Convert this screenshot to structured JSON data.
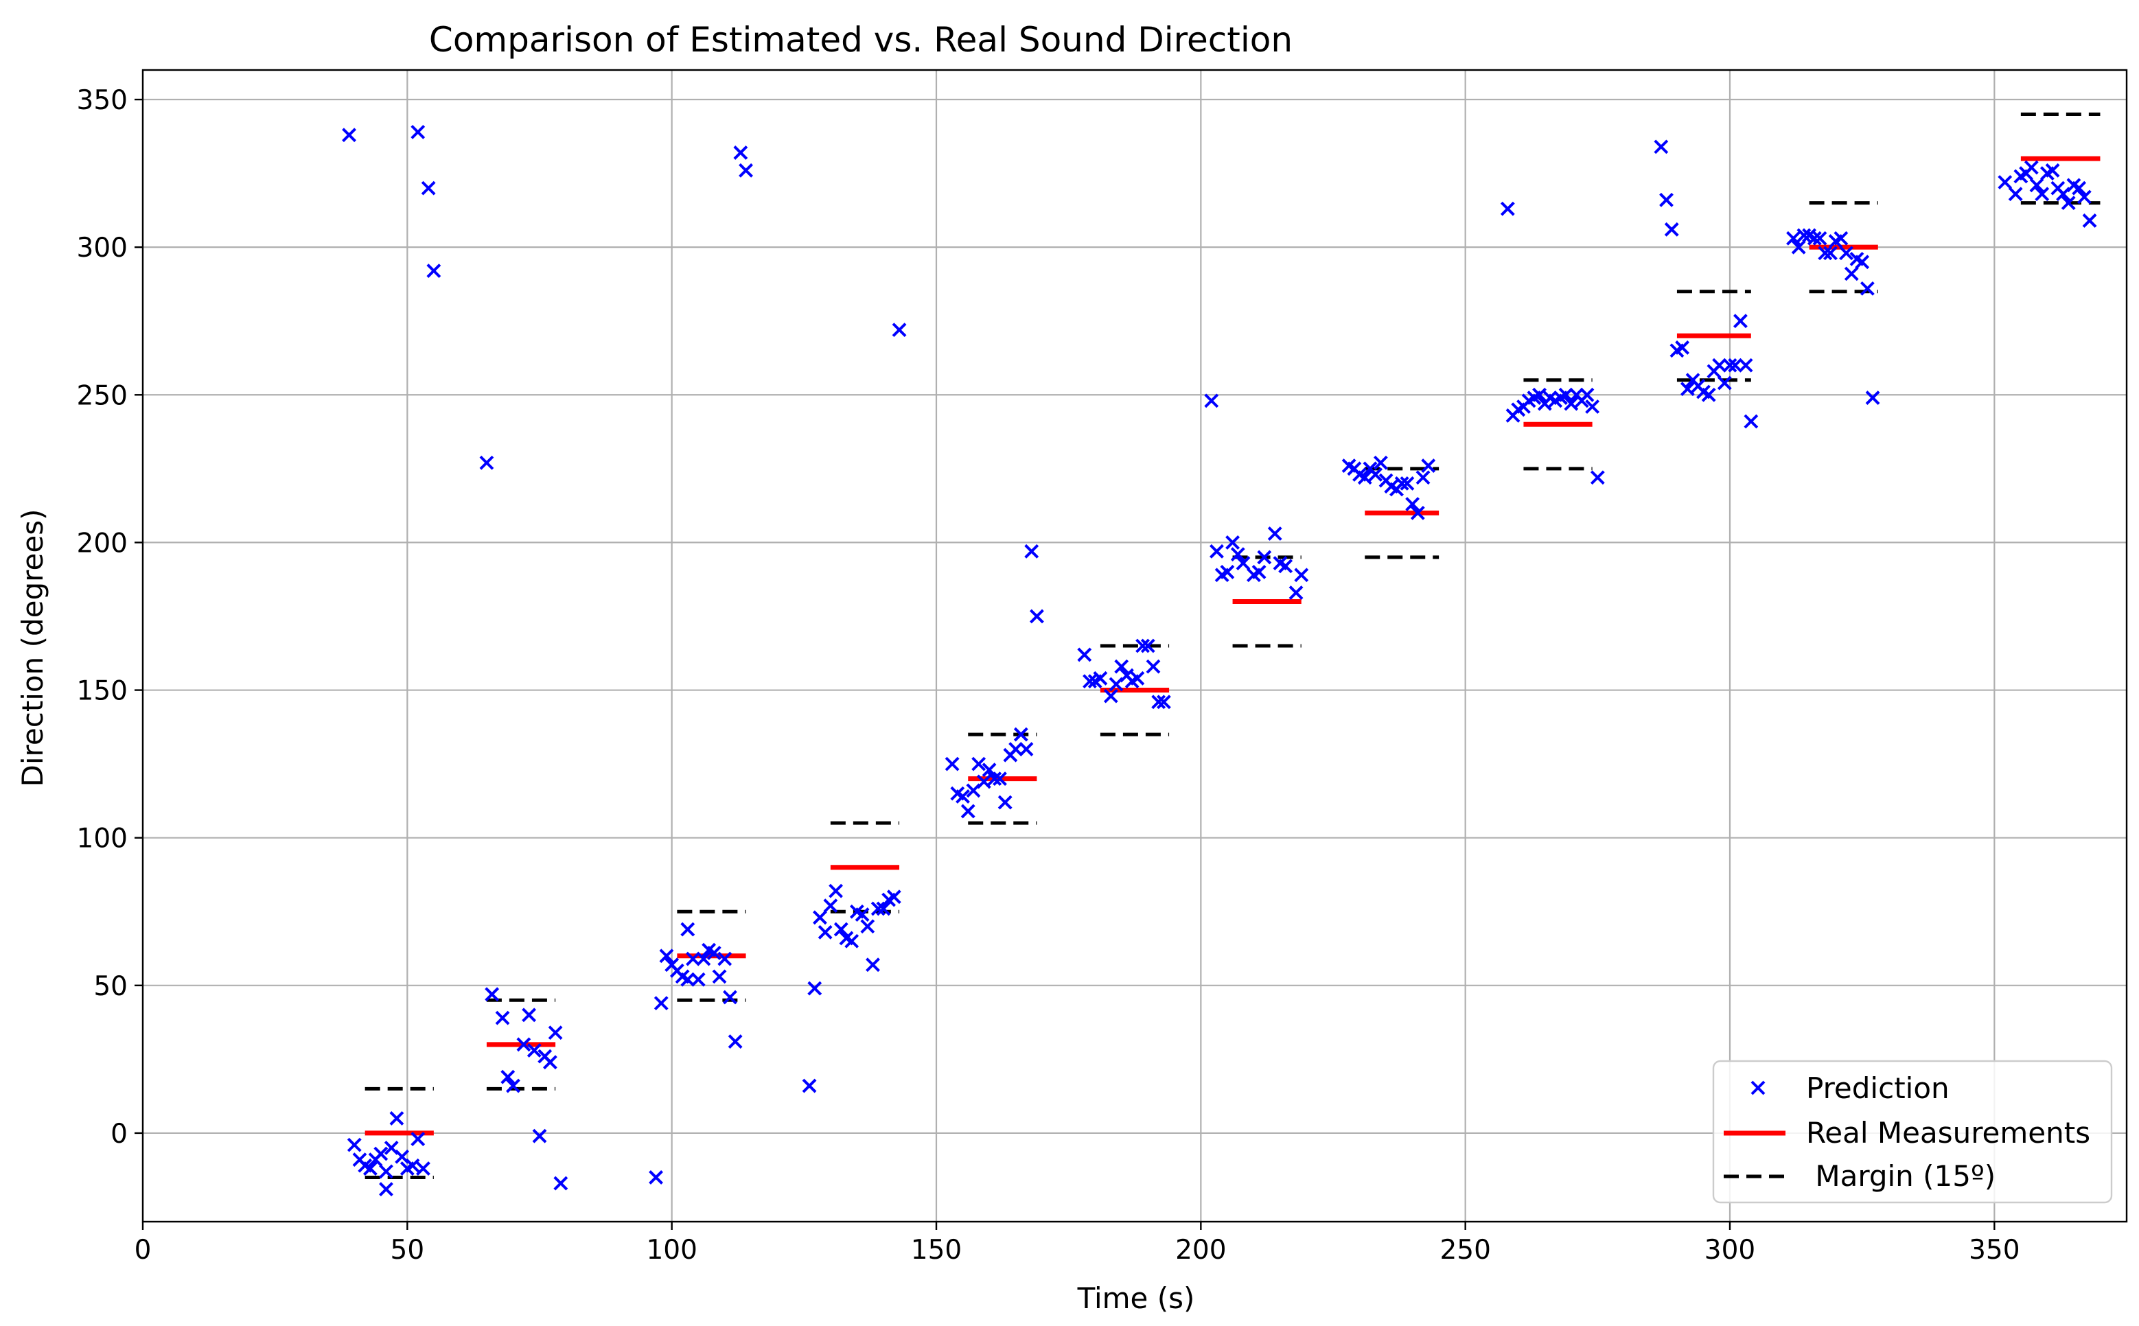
{
  "chart_data": {
    "type": "scatter",
    "title": "Comparison of Estimated vs. Real Sound Direction",
    "xlabel": "Time (s)",
    "ylabel": "Direction (degrees)",
    "xlim": [
      0,
      375
    ],
    "ylim": [
      -30,
      360
    ],
    "xticks": [
      0,
      50,
      100,
      150,
      200,
      250,
      300,
      350
    ],
    "yticks": [
      0,
      50,
      100,
      150,
      200,
      250,
      300,
      350
    ],
    "grid": true,
    "legend_position": "bottom-right",
    "colors": {
      "prediction": "#0000ff",
      "real": "#ff0000",
      "margin": "#000000"
    },
    "legend": [
      {
        "label": "Prediction",
        "style": "marker-x",
        "color": "#0000ff"
      },
      {
        "label": "Real Measurements",
        "style": "line",
        "color": "#ff0000"
      },
      {
        "label": " Margin (15º)",
        "style": "dashed",
        "color": "#000000"
      }
    ],
    "series": [
      {
        "name": "Prediction",
        "kind": "scatter",
        "points": [
          [
            39,
            338
          ],
          [
            40,
            -4
          ],
          [
            41,
            -9
          ],
          [
            42,
            -11
          ],
          [
            43,
            -12
          ],
          [
            44,
            -9
          ],
          [
            45,
            -7
          ],
          [
            46,
            -13
          ],
          [
            46,
            -19
          ],
          [
            47,
            -5
          ],
          [
            48,
            5
          ],
          [
            49,
            -8
          ],
          [
            50,
            -12
          ],
          [
            51,
            -11
          ],
          [
            52,
            -2
          ],
          [
            52,
            339
          ],
          [
            53,
            -12
          ],
          [
            54,
            320
          ],
          [
            55,
            292
          ],
          [
            65,
            227
          ],
          [
            66,
            47
          ],
          [
            68,
            39
          ],
          [
            69,
            19
          ],
          [
            70,
            16
          ],
          [
            72,
            30
          ],
          [
            73,
            40
          ],
          [
            74,
            28
          ],
          [
            75,
            -1
          ],
          [
            76,
            26
          ],
          [
            77,
            24
          ],
          [
            78,
            34
          ],
          [
            79,
            -17
          ],
          [
            97,
            -15
          ],
          [
            98,
            44
          ],
          [
            99,
            60
          ],
          [
            100,
            57
          ],
          [
            101,
            55
          ],
          [
            102,
            53
          ],
          [
            103,
            52
          ],
          [
            103,
            69
          ],
          [
            104,
            59
          ],
          [
            105,
            52
          ],
          [
            106,
            59
          ],
          [
            107,
            62
          ],
          [
            108,
            61
          ],
          [
            109,
            53
          ],
          [
            110,
            59
          ],
          [
            111,
            46
          ],
          [
            112,
            31
          ],
          [
            113,
            332
          ],
          [
            114,
            326
          ],
          [
            126,
            16
          ],
          [
            127,
            49
          ],
          [
            128,
            73
          ],
          [
            129,
            68
          ],
          [
            130,
            77
          ],
          [
            131,
            82
          ],
          [
            132,
            69
          ],
          [
            133,
            66
          ],
          [
            134,
            65
          ],
          [
            135,
            75
          ],
          [
            136,
            74
          ],
          [
            137,
            70
          ],
          [
            138,
            57
          ],
          [
            139,
            76
          ],
          [
            140,
            76
          ],
          [
            141,
            79
          ],
          [
            142,
            80
          ],
          [
            143,
            272
          ],
          [
            153,
            125
          ],
          [
            154,
            115
          ],
          [
            155,
            114
          ],
          [
            156,
            109
          ],
          [
            157,
            116
          ],
          [
            158,
            125
          ],
          [
            159,
            119
          ],
          [
            160,
            123
          ],
          [
            161,
            120
          ],
          [
            162,
            120
          ],
          [
            163,
            112
          ],
          [
            164,
            128
          ],
          [
            165,
            130
          ],
          [
            166,
            135
          ],
          [
            167,
            130
          ],
          [
            168,
            197
          ],
          [
            169,
            175
          ],
          [
            178,
            162
          ],
          [
            179,
            153
          ],
          [
            180,
            153
          ],
          [
            181,
            154
          ],
          [
            183,
            148
          ],
          [
            184,
            152
          ],
          [
            185,
            158
          ],
          [
            186,
            155
          ],
          [
            187,
            153
          ],
          [
            188,
            154
          ],
          [
            189,
            165
          ],
          [
            190,
            165
          ],
          [
            191,
            158
          ],
          [
            192,
            146
          ],
          [
            193,
            146
          ],
          [
            202,
            248
          ],
          [
            203,
            197
          ],
          [
            204,
            189
          ],
          [
            205,
            190
          ],
          [
            206,
            200
          ],
          [
            207,
            196
          ],
          [
            208,
            193
          ],
          [
            210,
            189
          ],
          [
            211,
            190
          ],
          [
            212,
            195
          ],
          [
            214,
            203
          ],
          [
            215,
            193
          ],
          [
            216,
            192
          ],
          [
            218,
            183
          ],
          [
            219,
            189
          ],
          [
            228,
            226
          ],
          [
            229,
            225
          ],
          [
            230,
            223
          ],
          [
            231,
            222
          ],
          [
            232,
            225
          ],
          [
            233,
            223
          ],
          [
            234,
            227
          ],
          [
            235,
            221
          ],
          [
            236,
            219
          ],
          [
            237,
            218
          ],
          [
            238,
            220
          ],
          [
            239,
            220
          ],
          [
            240,
            213
          ],
          [
            241,
            210
          ],
          [
            242,
            222
          ],
          [
            243,
            226
          ],
          [
            258,
            313
          ],
          [
            259,
            243
          ],
          [
            260,
            245
          ],
          [
            261,
            246
          ],
          [
            262,
            248
          ],
          [
            263,
            249
          ],
          [
            264,
            250
          ],
          [
            265,
            247
          ],
          [
            266,
            249
          ],
          [
            267,
            248
          ],
          [
            268,
            249
          ],
          [
            269,
            250
          ],
          [
            270,
            247
          ],
          [
            271,
            250
          ],
          [
            272,
            248
          ],
          [
            273,
            250
          ],
          [
            274,
            246
          ],
          [
            275,
            222
          ],
          [
            287,
            334
          ],
          [
            288,
            316
          ],
          [
            289,
            306
          ],
          [
            290,
            265
          ],
          [
            291,
            266
          ],
          [
            292,
            252
          ],
          [
            293,
            255
          ],
          [
            294,
            253
          ],
          [
            295,
            251
          ],
          [
            296,
            250
          ],
          [
            297,
            258
          ],
          [
            298,
            260
          ],
          [
            299,
            254
          ],
          [
            300,
            260
          ],
          [
            301,
            260
          ],
          [
            302,
            275
          ],
          [
            303,
            260
          ],
          [
            304,
            241
          ],
          [
            312,
            303
          ],
          [
            313,
            300
          ],
          [
            314,
            304
          ],
          [
            315,
            304
          ],
          [
            316,
            303
          ],
          [
            317,
            303
          ],
          [
            318,
            298
          ],
          [
            319,
            298
          ],
          [
            320,
            302
          ],
          [
            321,
            303
          ],
          [
            322,
            298
          ],
          [
            323,
            291
          ],
          [
            324,
            296
          ],
          [
            325,
            295
          ],
          [
            326,
            286
          ],
          [
            327,
            249
          ],
          [
            352,
            322
          ],
          [
            354,
            318
          ],
          [
            355,
            324
          ],
          [
            356,
            325
          ],
          [
            357,
            327
          ],
          [
            358,
            321
          ],
          [
            359,
            318
          ],
          [
            360,
            325
          ],
          [
            361,
            326
          ],
          [
            362,
            320
          ],
          [
            363,
            318
          ],
          [
            364,
            315
          ],
          [
            365,
            321
          ],
          [
            366,
            320
          ],
          [
            367,
            317
          ],
          [
            368,
            309
          ]
        ]
      },
      {
        "name": "Real Measurements",
        "kind": "segments",
        "segments": [
          {
            "x": [
              42,
              55
            ],
            "y": 0
          },
          {
            "x": [
              65,
              78
            ],
            "y": 30
          },
          {
            "x": [
              101,
              114
            ],
            "y": 60
          },
          {
            "x": [
              130,
              143
            ],
            "y": 90
          },
          {
            "x": [
              156,
              169
            ],
            "y": 120
          },
          {
            "x": [
              181,
              194
            ],
            "y": 150
          },
          {
            "x": [
              206,
              219
            ],
            "y": 180
          },
          {
            "x": [
              231,
              245
            ],
            "y": 210
          },
          {
            "x": [
              261,
              274
            ],
            "y": 240
          },
          {
            "x": [
              290,
              304
            ],
            "y": 270
          },
          {
            "x": [
              315,
              328
            ],
            "y": 300
          },
          {
            "x": [
              355,
              370
            ],
            "y": 330
          }
        ]
      },
      {
        "name": " Margin (15º)",
        "kind": "segments",
        "segments": [
          {
            "x": [
              42,
              55
            ],
            "y": 15
          },
          {
            "x": [
              42,
              55
            ],
            "y": -15
          },
          {
            "x": [
              65,
              78
            ],
            "y": 45
          },
          {
            "x": [
              65,
              78
            ],
            "y": 15
          },
          {
            "x": [
              101,
              114
            ],
            "y": 75
          },
          {
            "x": [
              101,
              114
            ],
            "y": 45
          },
          {
            "x": [
              130,
              143
            ],
            "y": 105
          },
          {
            "x": [
              130,
              143
            ],
            "y": 75
          },
          {
            "x": [
              156,
              169
            ],
            "y": 135
          },
          {
            "x": [
              156,
              169
            ],
            "y": 105
          },
          {
            "x": [
              181,
              194
            ],
            "y": 165
          },
          {
            "x": [
              181,
              194
            ],
            "y": 135
          },
          {
            "x": [
              206,
              219
            ],
            "y": 195
          },
          {
            "x": [
              206,
              219
            ],
            "y": 165
          },
          {
            "x": [
              231,
              245
            ],
            "y": 225
          },
          {
            "x": [
              231,
              245
            ],
            "y": 195
          },
          {
            "x": [
              261,
              274
            ],
            "y": 255
          },
          {
            "x": [
              261,
              274
            ],
            "y": 225
          },
          {
            "x": [
              290,
              304
            ],
            "y": 285
          },
          {
            "x": [
              290,
              304
            ],
            "y": 255
          },
          {
            "x": [
              315,
              328
            ],
            "y": 315
          },
          {
            "x": [
              315,
              328
            ],
            "y": 285
          },
          {
            "x": [
              355,
              370
            ],
            "y": 345
          },
          {
            "x": [
              355,
              370
            ],
            "y": 315
          }
        ]
      }
    ]
  }
}
